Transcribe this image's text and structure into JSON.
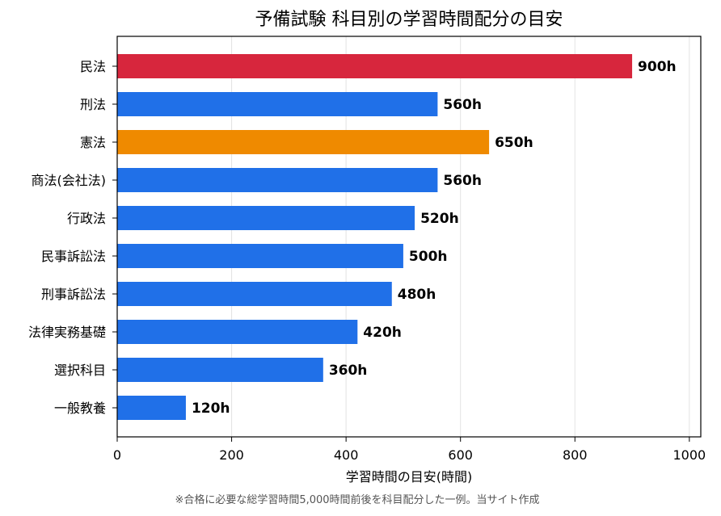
{
  "chart_data": {
    "type": "bar",
    "orientation": "horizontal",
    "title": "予備試験 科目別の学習時間配分の目安",
    "xlabel": "学習時間の目安(時間)",
    "ylabel": "",
    "xlim": [
      0,
      1020
    ],
    "xticks": [
      0,
      200,
      400,
      600,
      800,
      1000
    ],
    "grid": "vertical",
    "legend": "none",
    "categories": [
      "民法",
      "刑法",
      "憲法",
      "商法(会社法)",
      "行政法",
      "民事訴訟法",
      "刑事訴訟法",
      "法律実務基礎",
      "選択科目",
      "一般教養"
    ],
    "values": [
      900,
      560,
      650,
      560,
      520,
      500,
      480,
      420,
      360,
      120
    ],
    "value_labels": [
      "900h",
      "560h",
      "650h",
      "560h",
      "520h",
      "500h",
      "480h",
      "420h",
      "360h",
      "120h"
    ],
    "colors": [
      "#d7263d",
      "#2070e8",
      "#ef8a00",
      "#2070e8",
      "#2070e8",
      "#2070e8",
      "#2070e8",
      "#2070e8",
      "#2070e8",
      "#2070e8"
    ]
  },
  "footnote": "※合格に必要な総学習時間5,000時間前後を科目配分した一例。当サイト作成"
}
